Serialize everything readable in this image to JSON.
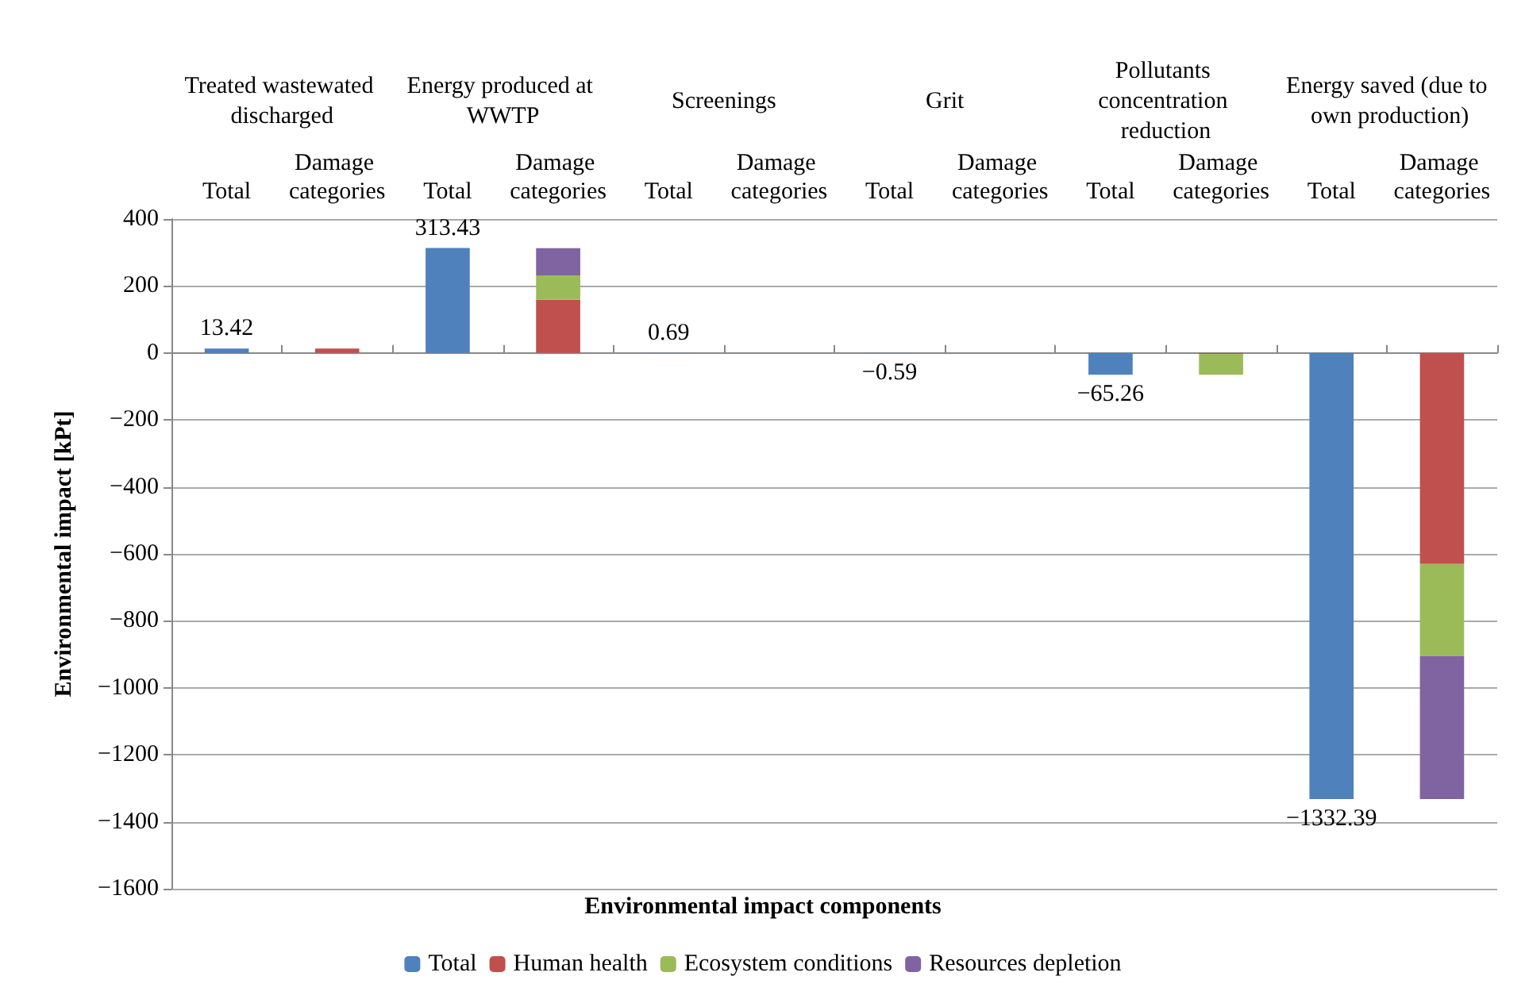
{
  "chart_data": {
    "type": "bar",
    "stacked": true,
    "xlabel": "Environmental impact components",
    "ylabel": "Environmental impact [kPt]",
    "annotations": [
      "Treated wastewated discharged",
      "Energy produced at WWTP",
      "Screenings",
      "Grit",
      "Pollutants concentration reduction",
      "Energy saved (due to own production)"
    ],
    "categories": [
      "Total",
      "Damage categories",
      "Total",
      "Damage categories",
      "Total",
      "Damage categories",
      "Total",
      "Damage categories",
      "Total",
      "Damage categories",
      "Total",
      "Damage categories"
    ],
    "series": [
      {
        "name": "Total",
        "color": "#4f81bd",
        "values": [
          13.42,
          null,
          313.43,
          null,
          0.69,
          null,
          -0.59,
          null,
          -65.26,
          null,
          -1332.39,
          null
        ],
        "value_labels": [
          "13.42",
          null,
          "313.43",
          null,
          "0.69",
          null,
          "−0.59",
          null,
          "−65.26",
          null,
          "−1332.39",
          null
        ]
      },
      {
        "name": "Human health",
        "color": "#c0504d",
        "values": [
          null,
          13,
          null,
          159,
          null,
          null,
          null,
          null,
          null,
          -3,
          null,
          -630
        ]
      },
      {
        "name": "Ecosystem conditions",
        "color": "#9bbb59",
        "values": [
          null,
          null,
          null,
          73,
          null,
          null,
          null,
          null,
          null,
          -62,
          null,
          -275
        ]
      },
      {
        "name": "Resources depletion",
        "color": "#8064a2",
        "values": [
          null,
          null,
          null,
          81,
          null,
          null,
          null,
          null,
          null,
          null,
          null,
          -427
        ]
      }
    ],
    "ylim": [
      -1600,
      400
    ],
    "yticks": [
      {
        "value": -1600,
        "label": "−1600"
      },
      {
        "value": -1400,
        "label": "−1400"
      },
      {
        "value": -1200,
        "label": "−1200"
      },
      {
        "value": -1000,
        "label": "−1000"
      },
      {
        "value": -800,
        "label": "−800"
      },
      {
        "value": -600,
        "label": "−600"
      },
      {
        "value": -400,
        "label": "−400"
      },
      {
        "value": -200,
        "label": "−200"
      },
      0,
      200,
      400
    ],
    "grid": "y",
    "legend": "bottom"
  }
}
